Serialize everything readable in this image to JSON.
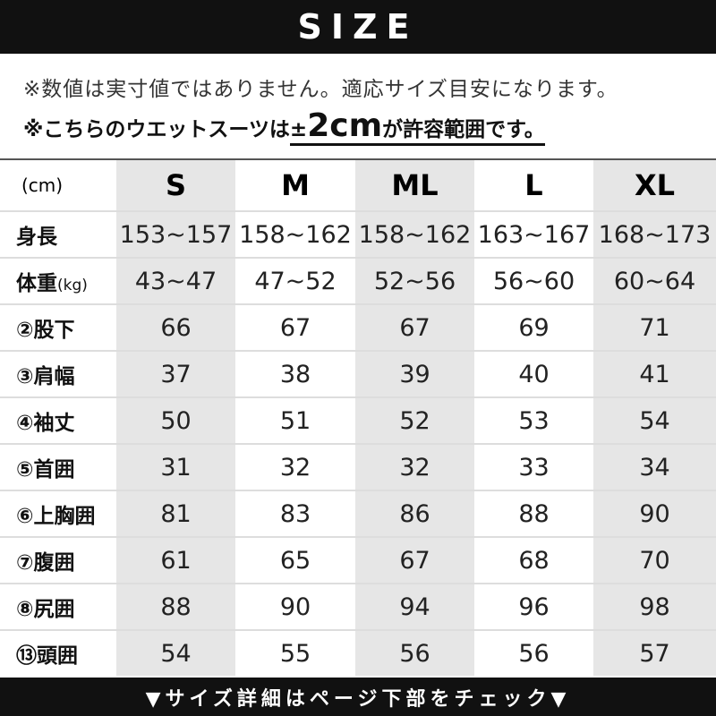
{
  "header": {
    "title": "SIZE"
  },
  "notes": {
    "line1": "※数値は実寸値ではありません。適応サイズ目安になります。",
    "line2_prefix": "※こちらのウエットスーツは",
    "line2_pm": "±",
    "line2_value": "2cm",
    "line2_suffix": "が許容範囲です。"
  },
  "table": {
    "unit": "(cm)",
    "sizes": [
      "S",
      "M",
      "ML",
      "L",
      "XL"
    ],
    "shaded_columns": [
      "S",
      "ML",
      "XL"
    ],
    "shade_color": "#e6e6e6",
    "rows": [
      {
        "label": "身長",
        "values": [
          "153~157",
          "158~162",
          "158~162",
          "163~167",
          "168~173"
        ]
      },
      {
        "label": "体重",
        "unit": "(kg)",
        "values": [
          "43~47",
          "47~52",
          "52~56",
          "56~60",
          "60~64"
        ]
      },
      {
        "label": "②股下",
        "values": [
          "66",
          "67",
          "67",
          "69",
          "71"
        ]
      },
      {
        "label": "③肩幅",
        "values": [
          "37",
          "38",
          "39",
          "40",
          "41"
        ]
      },
      {
        "label": "④袖丈",
        "values": [
          "50",
          "51",
          "52",
          "53",
          "54"
        ]
      },
      {
        "label": "⑤首囲",
        "values": [
          "31",
          "32",
          "32",
          "33",
          "34"
        ]
      },
      {
        "label": "⑥上胸囲",
        "values": [
          "81",
          "83",
          "86",
          "88",
          "90"
        ]
      },
      {
        "label": "⑦腹囲",
        "values": [
          "61",
          "65",
          "67",
          "68",
          "70"
        ]
      },
      {
        "label": "⑧尻囲",
        "values": [
          "88",
          "90",
          "94",
          "96",
          "98"
        ]
      },
      {
        "label": "⑬頭囲",
        "values": [
          "54",
          "55",
          "56",
          "56",
          "57"
        ]
      }
    ]
  },
  "footer": {
    "text": "▼サイズ詳細はページ下部をチェック▼"
  }
}
